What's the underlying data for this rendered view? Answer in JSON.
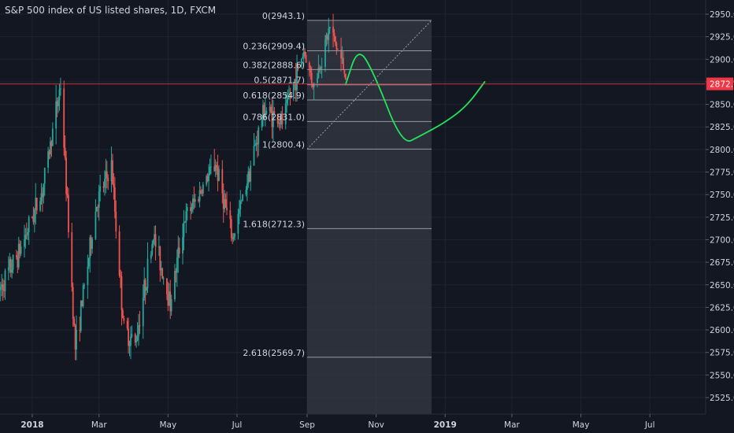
{
  "header": {
    "title": "S&P 500 index of US listed shares, 1D, FXCM"
  },
  "colors": {
    "background": "#131722",
    "grid": "#1f2330",
    "up": "#26a69a",
    "down": "#ef5350",
    "fib_zone": "#3a3e48",
    "fib_line": "#9598a1",
    "projection": "#22e45a",
    "price_line": "#f23645",
    "axis_text": "#d1d4dc"
  },
  "chart_data": {
    "type": "candlestick",
    "x_tick_labels": [
      "2018",
      "Mar",
      "May",
      "Jul",
      "Sep",
      "Nov",
      "2019",
      "Mar",
      "May",
      "Jul"
    ],
    "y_tick_labels": [
      "2950.0",
      "2925.0",
      "2900.0",
      "2875.0",
      "2850.0",
      "2825.0",
      "2800.0",
      "2775.0",
      "2750.0",
      "2725.0",
      "2700.0",
      "2675.0",
      "2650.0",
      "2625.0",
      "2600.0",
      "2575.0",
      "2550.0",
      "2525.0"
    ],
    "ylim": [
      2510,
      2955
    ],
    "last_price": 2872.7,
    "last_price_label": "2872.7",
    "fibonacci": {
      "high": 2943.1,
      "low": 2800.4,
      "levels": [
        {
          "ratio": 0,
          "price": 2943.1,
          "label": "0(2943.1)"
        },
        {
          "ratio": 0.236,
          "price": 2909.4,
          "label": "0.236(2909.4)"
        },
        {
          "ratio": 0.382,
          "price": 2888.6,
          "label": "0.382(2888.6)"
        },
        {
          "ratio": 0.5,
          "price": 2871.7,
          "label": "0.5(2871.7)"
        },
        {
          "ratio": 0.618,
          "price": 2854.9,
          "label": "0.618(2854.9)"
        },
        {
          "ratio": 0.786,
          "price": 2831.0,
          "label": "0.786(2831.0)"
        },
        {
          "ratio": 1,
          "price": 2800.4,
          "label": "1(2800.4)"
        },
        {
          "ratio": 1.618,
          "price": 2712.3,
          "label": "1.618(2712.3)"
        },
        {
          "ratio": 2.618,
          "price": 2569.7,
          "label": "2.618(2569.7)"
        }
      ]
    },
    "price_anchors": [
      [
        "2017-12-01",
        2640
      ],
      [
        "2017-12-20",
        2685
      ],
      [
        "2018-01-10",
        2755
      ],
      [
        "2018-01-26",
        2872
      ],
      [
        "2018-02-08",
        2580
      ],
      [
        "2018-02-27",
        2740
      ],
      [
        "2018-03-12",
        2782
      ],
      [
        "2018-03-23",
        2600
      ],
      [
        "2018-04-02",
        2585
      ],
      [
        "2018-04-18",
        2705
      ],
      [
        "2018-05-03",
        2630
      ],
      [
        "2018-05-15",
        2720
      ],
      [
        "2018-06-12",
        2785
      ],
      [
        "2018-06-27",
        2700
      ],
      [
        "2018-07-25",
        2845
      ],
      [
        "2018-08-10",
        2830
      ],
      [
        "2018-08-29",
        2910
      ],
      [
        "2018-09-07",
        2870
      ],
      [
        "2018-09-21",
        2935
      ],
      [
        "2018-10-05",
        2885
      ]
    ],
    "projection_path": [
      [
        "2018-10-05",
        2872
      ],
      [
        "2018-10-16",
        2914
      ],
      [
        "2018-10-30",
        2885
      ],
      [
        "2018-11-24",
        2805
      ],
      [
        "2018-12-10",
        2815
      ],
      [
        "2019-01-01",
        2830
      ],
      [
        "2019-01-20",
        2848
      ],
      [
        "2019-02-05",
        2875
      ]
    ],
    "fib_zone_range": [
      "2018-09-01",
      "2018-12-20"
    ],
    "grid": true
  }
}
